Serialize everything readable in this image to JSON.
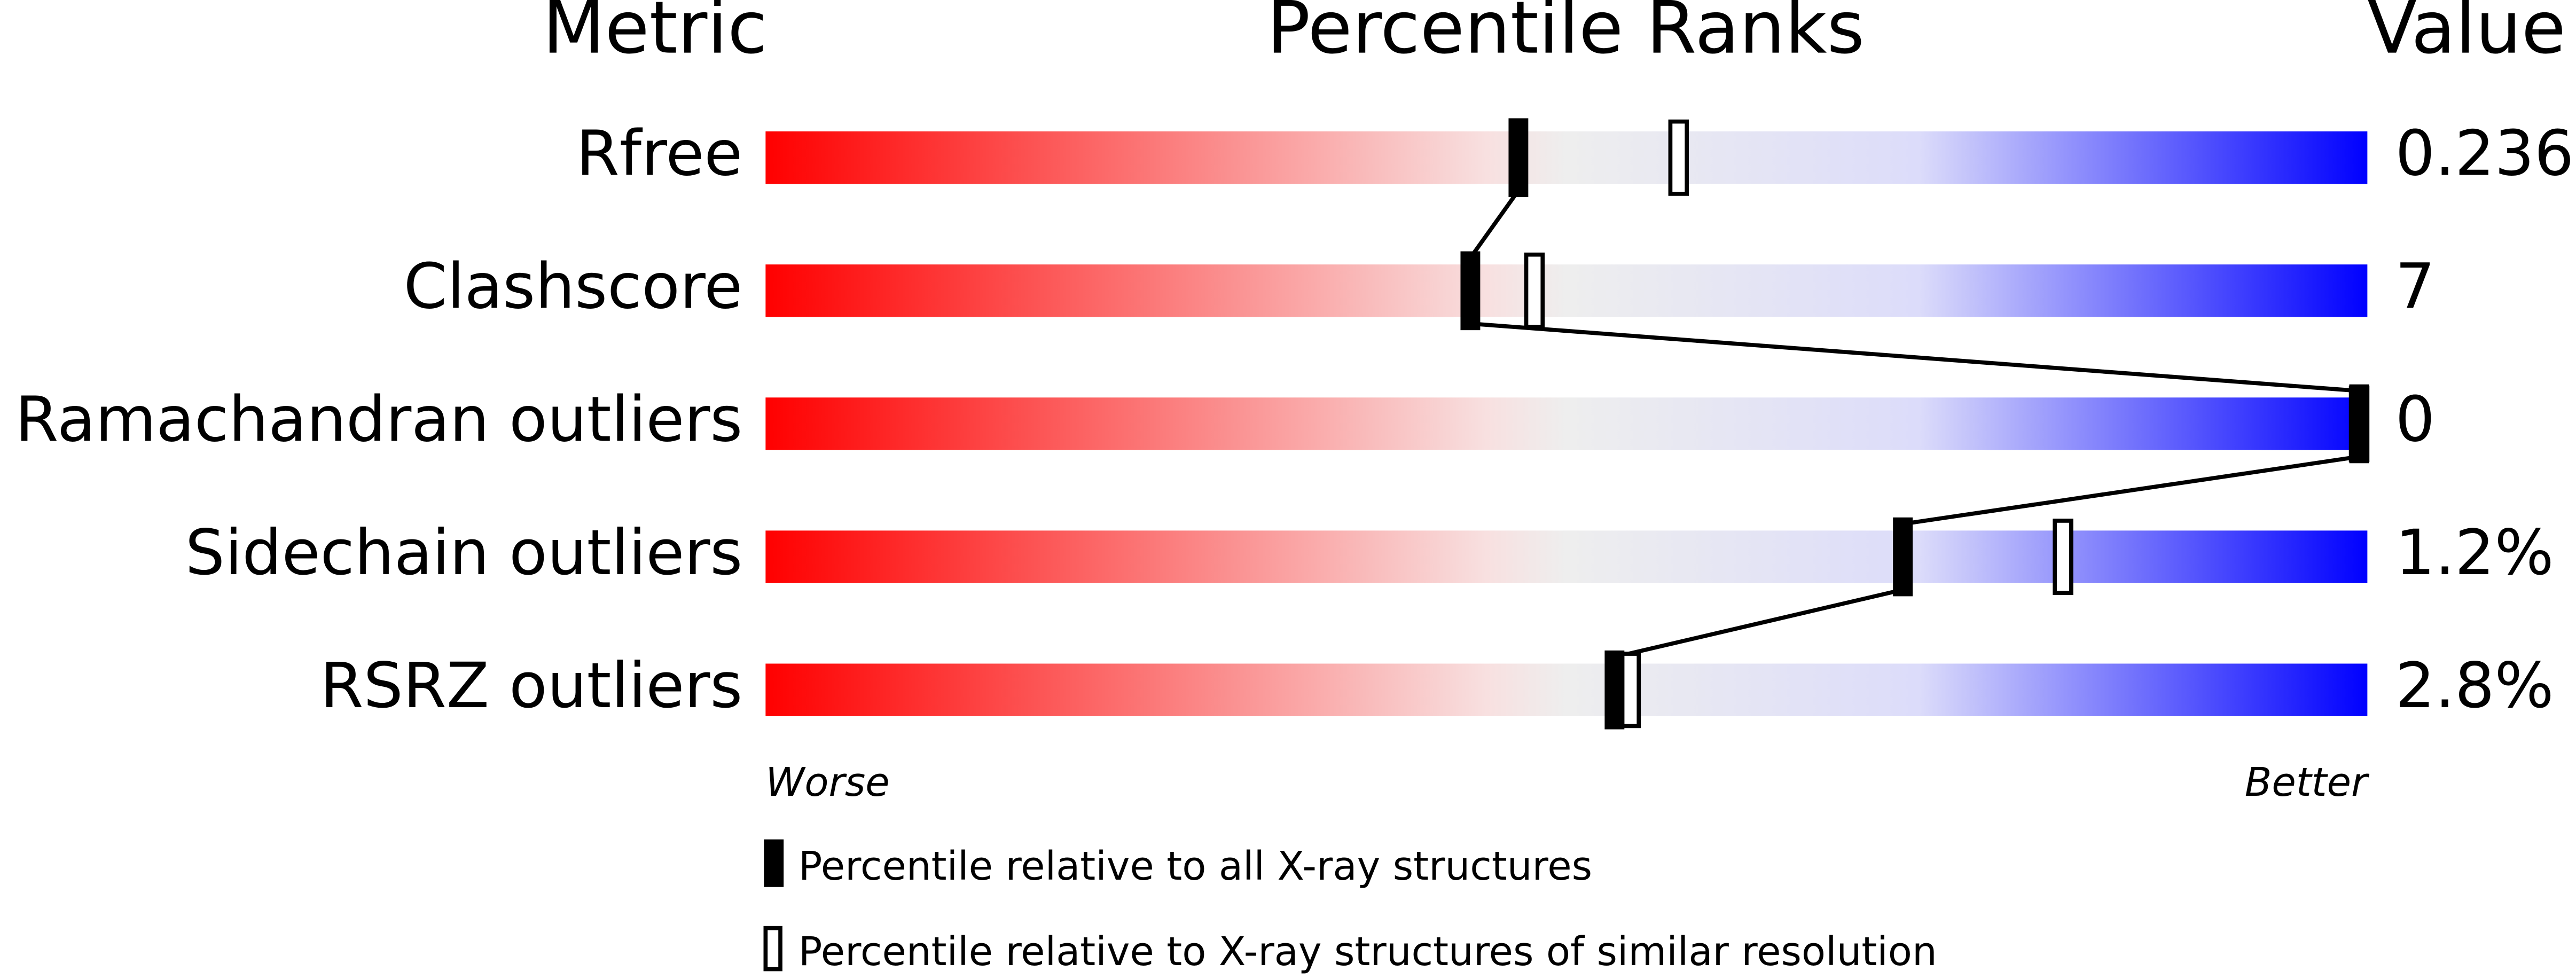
{
  "chart_data": {
    "type": "percentile",
    "headers": {
      "metric": "Metric",
      "ranks": "Percentile Ranks",
      "value": "Value"
    },
    "categories": [
      "Rfree",
      "Clashscore",
      "Ramachandran outliers",
      "Sidechain outliers",
      "RSRZ outliers"
    ],
    "metric_values": [
      "0.236",
      "7",
      "0",
      "1.2%",
      "2.8%"
    ],
    "series": [
      {
        "name": "Percentile relative to all X-ray structures",
        "color": "#000000",
        "values": [
          47,
          44,
          100,
          71,
          53
        ]
      },
      {
        "name": "Percentile relative to X-ray structures of similar resolution",
        "color": "#000000",
        "values": [
          57,
          48,
          100,
          81,
          54
        ]
      }
    ],
    "xlim": [
      0,
      100
    ],
    "axis_labels": {
      "worse": "Worse",
      "better": "Better"
    }
  }
}
